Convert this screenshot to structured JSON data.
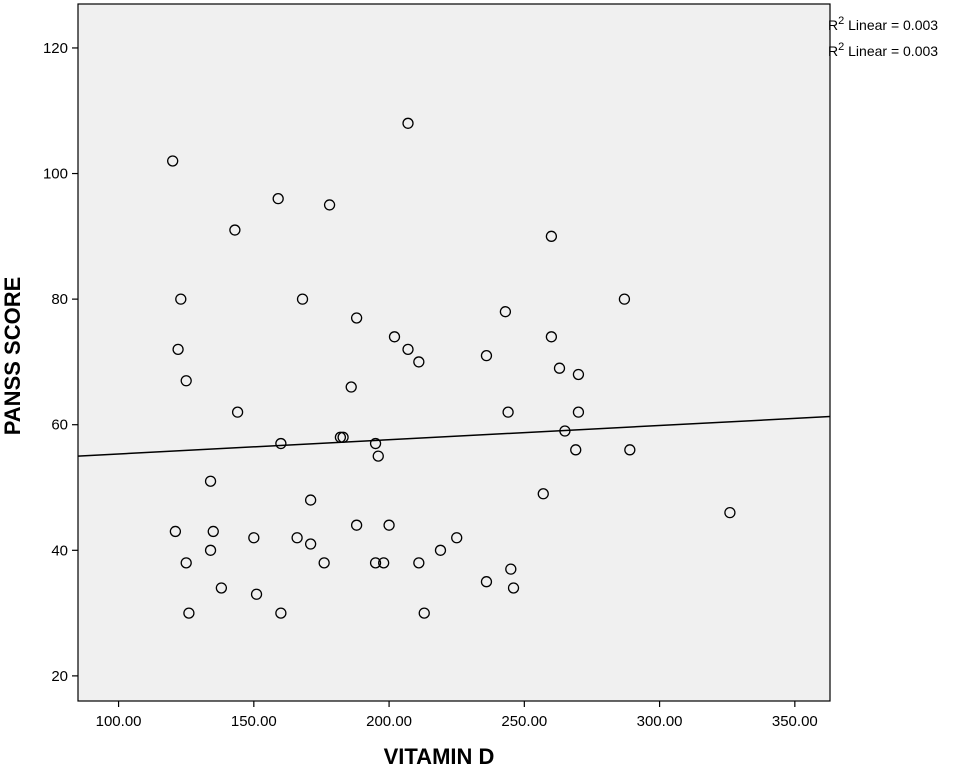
{
  "chart_data": {
    "type": "scatter",
    "xlabel": "VITAMIN D",
    "ylabel": "PANSS SCORE",
    "xlim": [
      85,
      363
    ],
    "ylim": [
      16,
      127
    ],
    "xticks": [
      100,
      150,
      200,
      250,
      300,
      350
    ],
    "xtick_labels": [
      "100.00",
      "150.00",
      "200.00",
      "250.00",
      "300.00",
      "350.00"
    ],
    "yticks": [
      20,
      40,
      60,
      80,
      100,
      120
    ],
    "ytick_labels": [
      "20",
      "40",
      "60",
      "80",
      "100",
      "120"
    ],
    "grid": false,
    "plot_background": "#f0f0f0",
    "marker": "open-circle",
    "legend_entries": [
      {
        "prefix": "R",
        "sup": "2",
        "suffix": " Linear = 0.003"
      },
      {
        "prefix": "R",
        "sup": "2",
        "suffix": " Linear = 0.003"
      }
    ],
    "legend_position": "top-right",
    "fit_line": {
      "type": "linear",
      "x": [
        85,
        363
      ],
      "y": [
        55,
        61.3
      ]
    },
    "points": [
      [
        120,
        102
      ],
      [
        207,
        108
      ],
      [
        159,
        96
      ],
      [
        178,
        95
      ],
      [
        143,
        91
      ],
      [
        260,
        90
      ],
      [
        123,
        80
      ],
      [
        168,
        80
      ],
      [
        287,
        80
      ],
      [
        243,
        78
      ],
      [
        188,
        77
      ],
      [
        202,
        74
      ],
      [
        260,
        74
      ],
      [
        122,
        72
      ],
      [
        207,
        72
      ],
      [
        236,
        71
      ],
      [
        211,
        70
      ],
      [
        263,
        69
      ],
      [
        270,
        68
      ],
      [
        125,
        67
      ],
      [
        186,
        66
      ],
      [
        144,
        62
      ],
      [
        244,
        62
      ],
      [
        270,
        62
      ],
      [
        265,
        59
      ],
      [
        182,
        58
      ],
      [
        183,
        58
      ],
      [
        160,
        57
      ],
      [
        195,
        57
      ],
      [
        269,
        56
      ],
      [
        289,
        56
      ],
      [
        196,
        55
      ],
      [
        134,
        51
      ],
      [
        257,
        49
      ],
      [
        171,
        48
      ],
      [
        326,
        46
      ],
      [
        188,
        44
      ],
      [
        200,
        44
      ],
      [
        121,
        43
      ],
      [
        135,
        43
      ],
      [
        150,
        42
      ],
      [
        166,
        42
      ],
      [
        225,
        42
      ],
      [
        171,
        41
      ],
      [
        134,
        40
      ],
      [
        219,
        40
      ],
      [
        125,
        38
      ],
      [
        176,
        38
      ],
      [
        195,
        38
      ],
      [
        198,
        38
      ],
      [
        211,
        38
      ],
      [
        245,
        37
      ],
      [
        236,
        35
      ],
      [
        138,
        34
      ],
      [
        246,
        34
      ],
      [
        151,
        33
      ],
      [
        126,
        30
      ],
      [
        160,
        30
      ],
      [
        213,
        30
      ]
    ]
  }
}
